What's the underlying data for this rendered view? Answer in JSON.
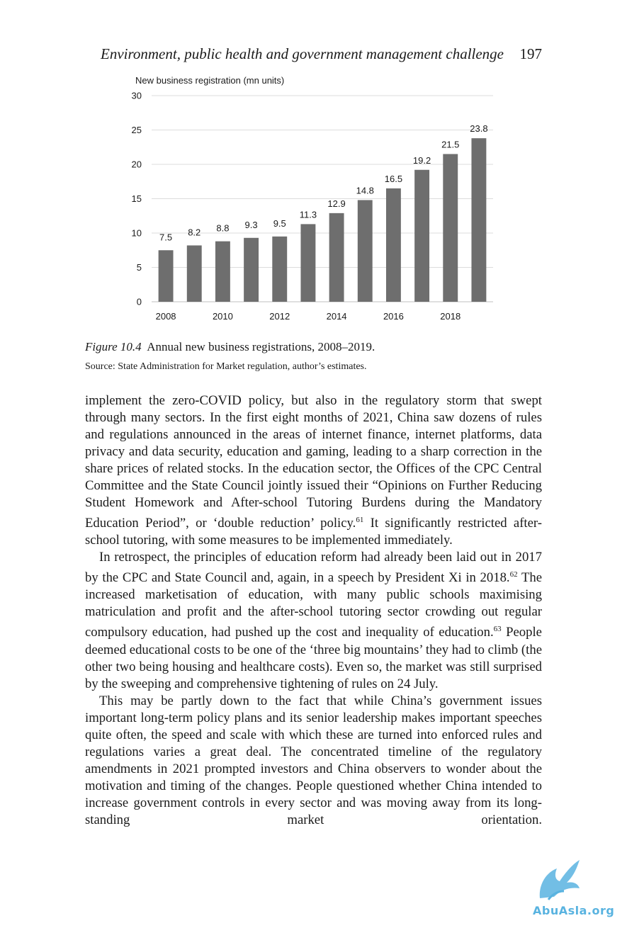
{
  "header": {
    "title": "Environment, public health and government management challenge",
    "page_number": "197"
  },
  "figure": {
    "label": "Figure 10.4",
    "caption": "Annual new business registrations, 2008–2019.",
    "source": "Source: State Administration for Market regulation, author’s estimates."
  },
  "chart_data": {
    "type": "bar",
    "title": "New business registration (mn units)",
    "categories": [
      "2008",
      "2009",
      "2010",
      "2011",
      "2012",
      "2013",
      "2014",
      "2015",
      "2016",
      "2017",
      "2018",
      "2019"
    ],
    "x_tick_labels": [
      "2008",
      "",
      "2010",
      "",
      "2012",
      "",
      "2014",
      "",
      "2016",
      "",
      "2018",
      ""
    ],
    "values": [
      7.5,
      8.2,
      8.8,
      9.3,
      9.5,
      11.3,
      12.9,
      14.8,
      16.5,
      19.2,
      21.5,
      23.8
    ],
    "data_labels": [
      "7.5",
      "8.2",
      "8.8",
      "9.3",
      "9.5",
      "11.3",
      "12.9",
      "14.8",
      "16.5",
      "19.2",
      "21.5",
      "23.8"
    ],
    "y_ticks": [
      "0",
      "5",
      "10",
      "15",
      "20",
      "25",
      "30"
    ],
    "ylim": [
      0,
      30
    ],
    "grid": true,
    "bar_color": "#6e6e6e",
    "xlabel": "",
    "ylabel": ""
  },
  "body": {
    "p1": "implement the zero-COVID policy, but also in the regulatory storm that swept through many sectors. In the first eight months of 2021, China saw dozens of rules and regulations announced in the areas of internet finance, internet platforms, data privacy and data security, education and gaming, leading to a sharp correction in the share prices of related stocks. In the education sector, the Offices of the CPC Central Committee and the State Council jointly issued their “Opinions on Further Reducing Student Homework and After-school Tutoring Burdens during the Mandatory Education Period”, or ‘double reduction’ policy.",
    "p1_note": "61",
    "p1_end": " It significantly restricted after-school tutoring, with some measures to be implemented immediately.",
    "p2_a": "In retrospect, the principles of education reform had already been laid out in 2017 by the CPC and State Council and, again, in a speech by President Xi in 2018.",
    "p2_note1": "62",
    "p2_b": " The increased marketisation of education, with many public schools maximising matriculation and profit and the after-school tutoring sector crowding out regular compulsory education, had pushed up the cost and inequality of education.",
    "p2_note2": "63",
    "p2_c": " People deemed educational costs to be one of the ‘three big mountains’ they had to climb (the other two being housing and healthcare costs). Even so, the market was still surprised by the sweeping and comprehensive tightening of rules on 24 July.",
    "p3": "This may be partly down to the fact that while China’s government issues important long-term policy plans and its senior leadership makes important speeches quite often, the speed and scale with which these are turned into enforced rules and regulations varies a great deal. The concentrated timeline of the regulatory amendments in 2021 prompted investors and China observers to wonder about the motivation and timing of the changes. People questioned whether China intended to increase government controls in every sector and was moving away from its long-standing market orientation."
  },
  "watermark": {
    "text": "AbuAsla.org",
    "color": "#59b3e0"
  }
}
